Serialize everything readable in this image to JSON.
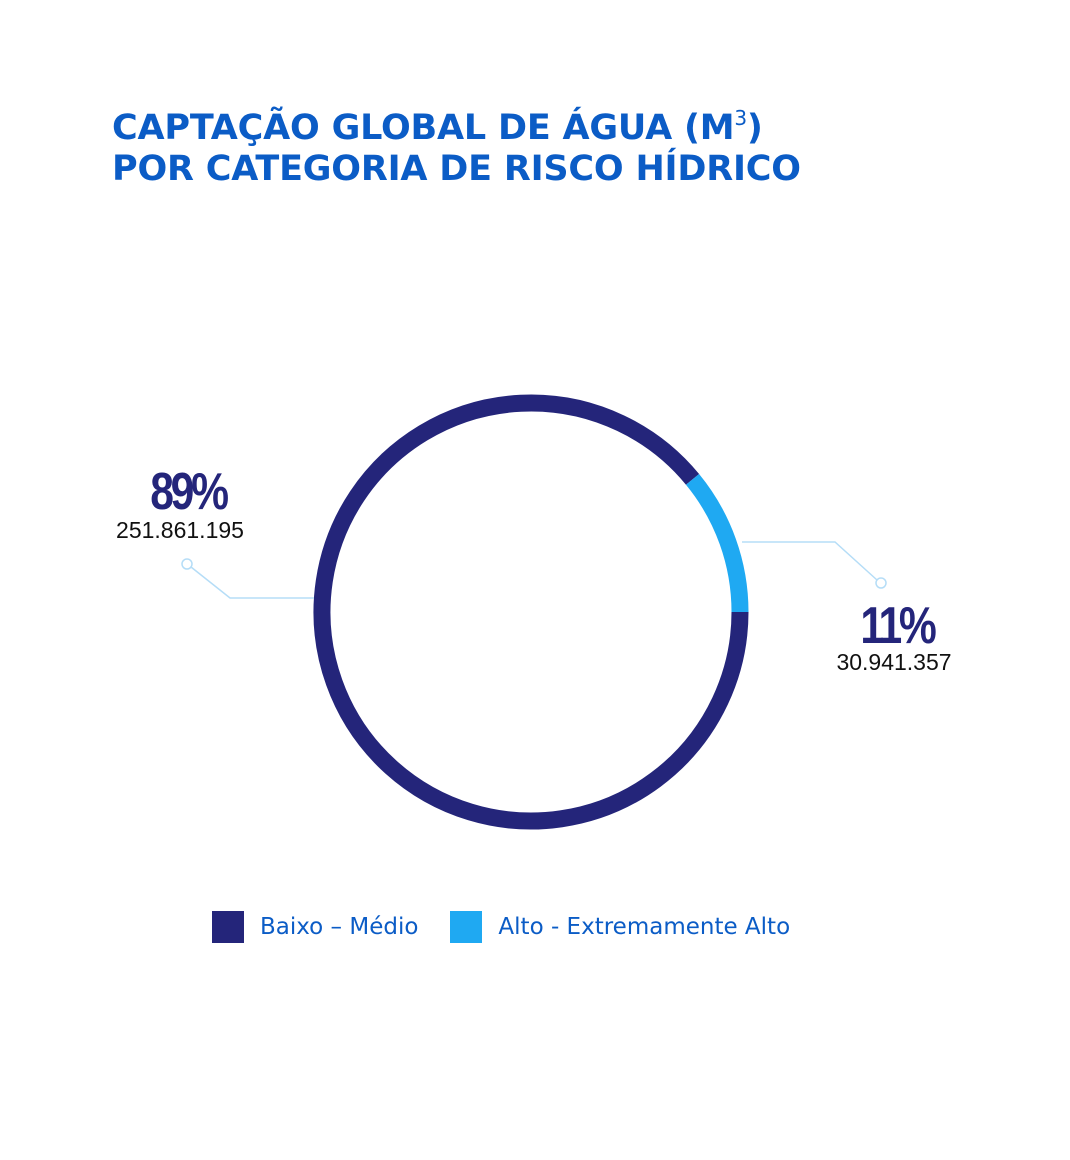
{
  "colors": {
    "title": "#0b5cc6",
    "dark_navy": "#24257a",
    "light_blue": "#1fa9f2",
    "connector": "#b5ddf7"
  },
  "chart_data": {
    "type": "pie",
    "variant": "donut",
    "title_line1": "CAPTAÇÃO GLOBAL DE ÁGUA (M",
    "title_sup": "3",
    "title_close": ")",
    "title_line2": "POR CATEGORIA DE RISCO HÍDRICO",
    "series": [
      {
        "name": "Baixo – Médio",
        "value": 251861195,
        "value_label": "251.861.195",
        "percent": 89,
        "percent_label": "89%",
        "color": "#24257a"
      },
      {
        "name": "Alto - Extremamente Alto",
        "value": 30941357,
        "value_label": "30.941.357",
        "percent": 11,
        "percent_label": "11%",
        "color": "#1fa9f2"
      }
    ],
    "legend_position": "bottom"
  }
}
